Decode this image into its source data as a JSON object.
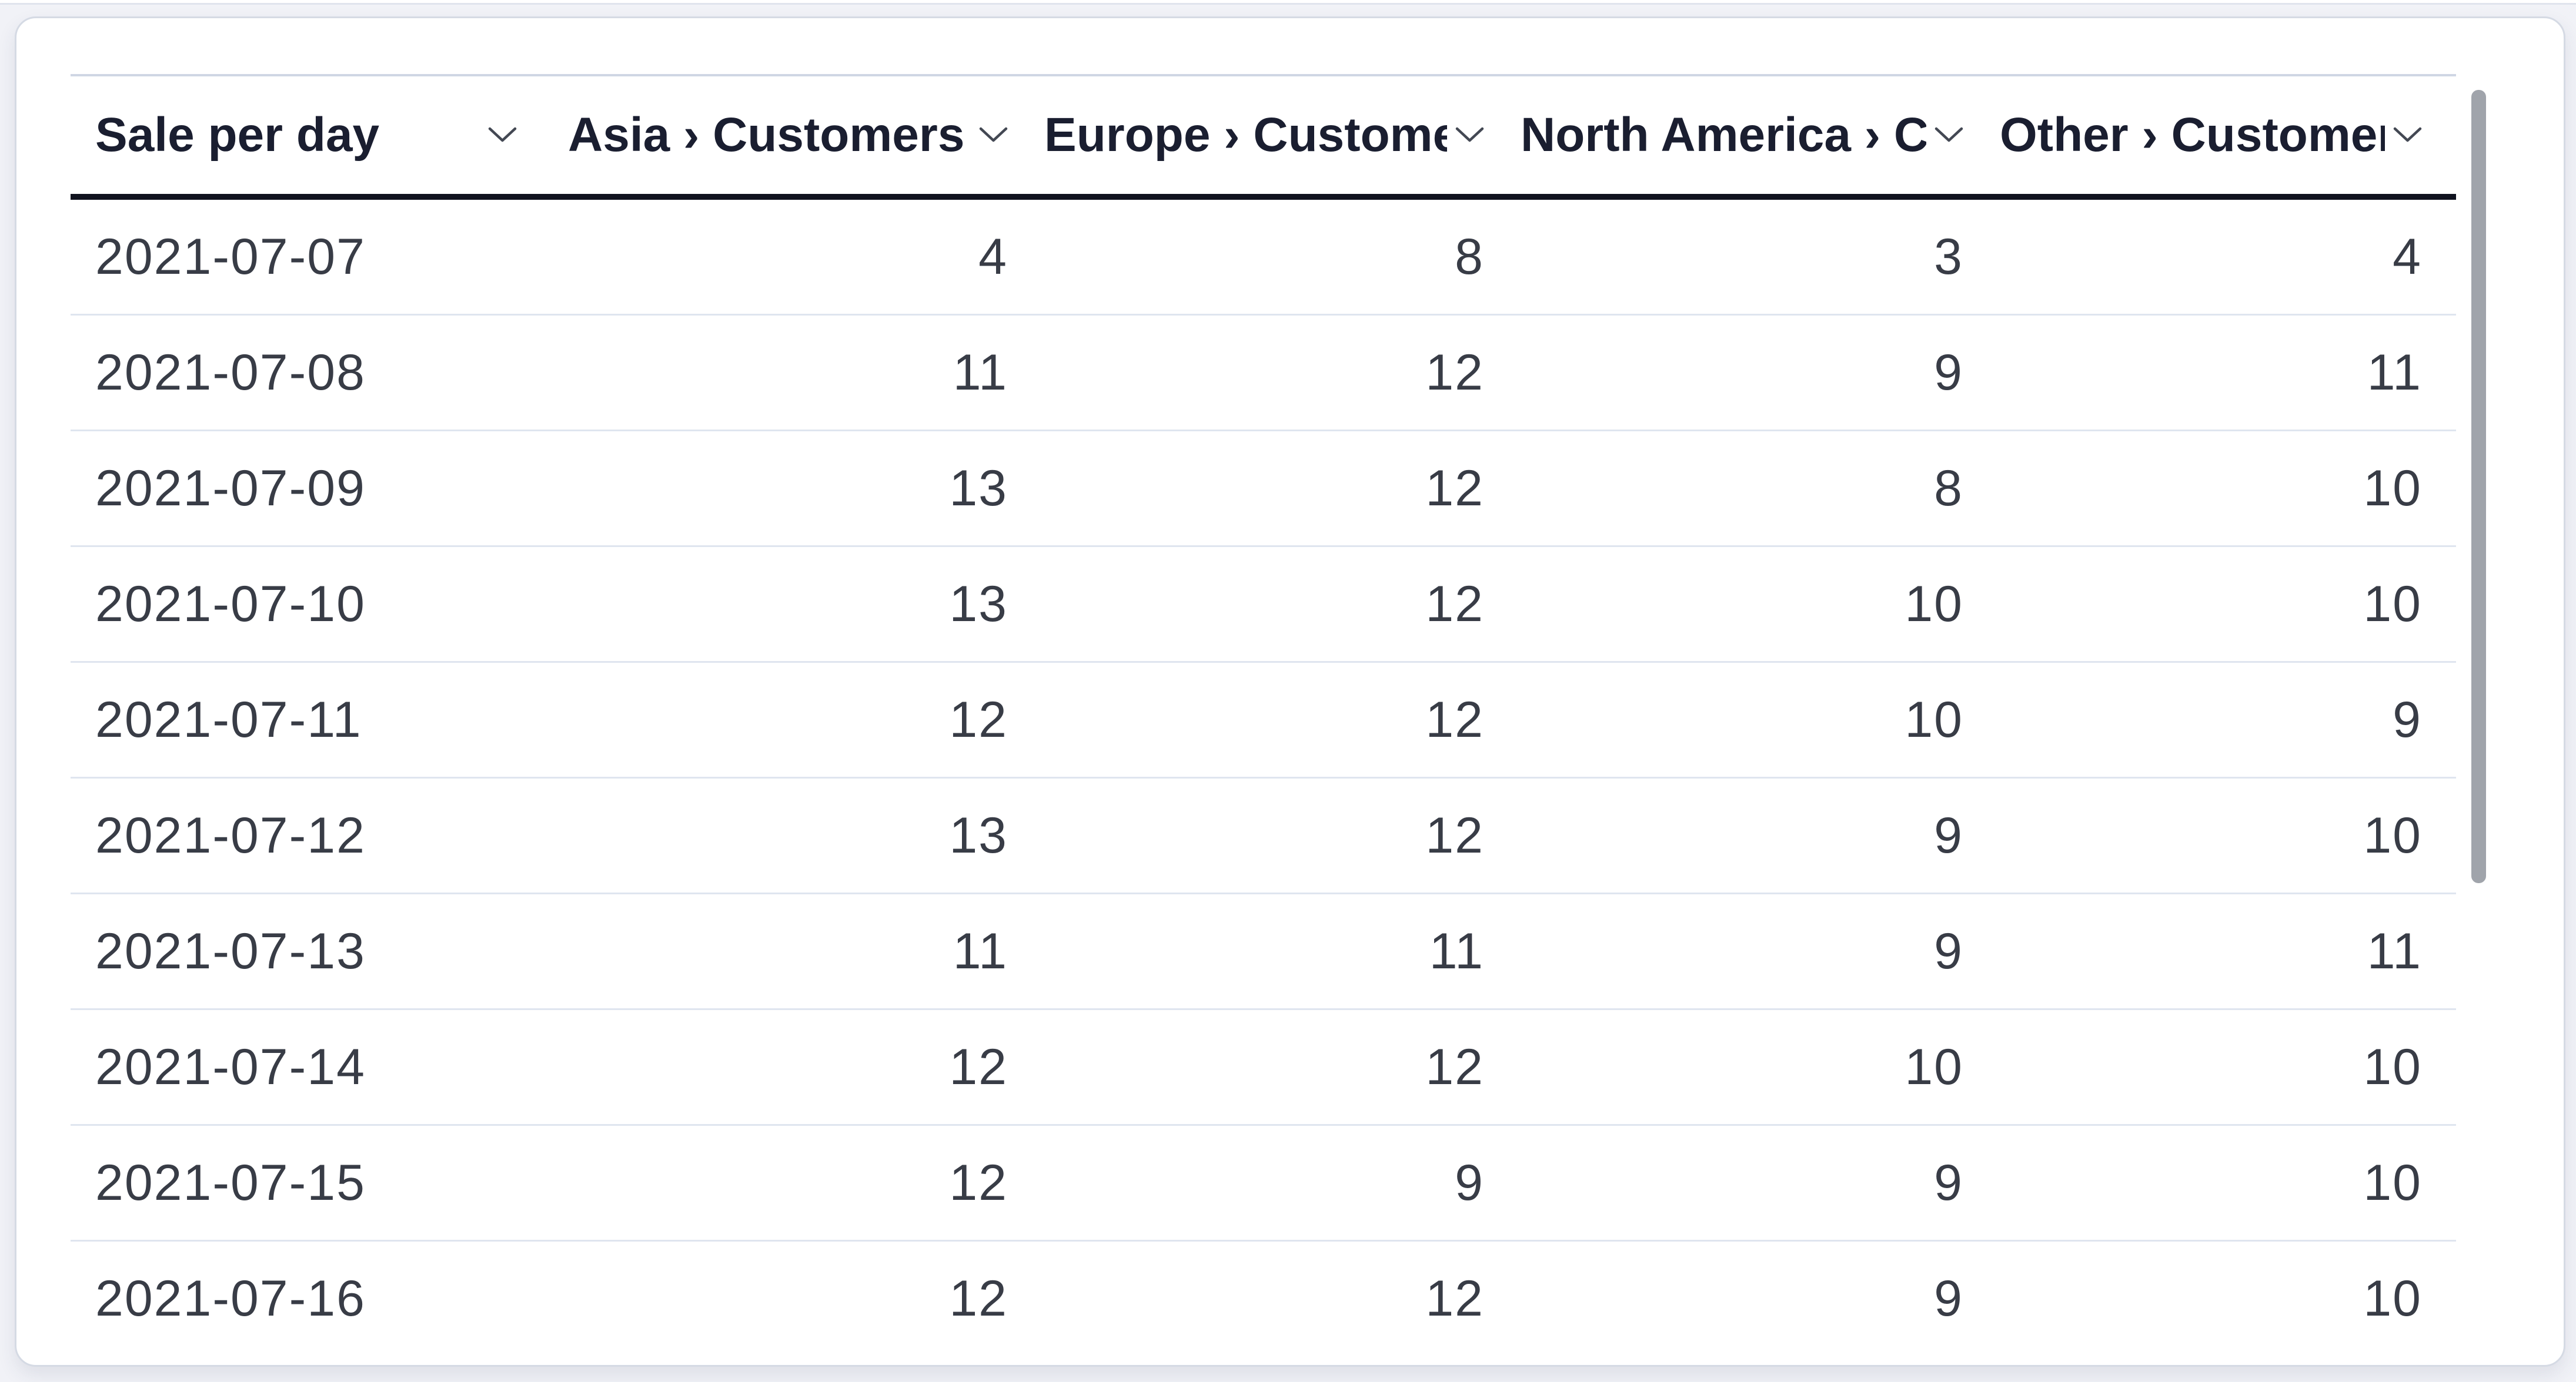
{
  "card": {
    "type": "table-card",
    "scrollbar": {
      "thumb_visible": true,
      "orientation": "vertical"
    }
  },
  "table": {
    "columns": [
      {
        "label": "Sale per day",
        "visible_label": "Sale per day",
        "align": "left",
        "sort_icon": "chevron-down"
      },
      {
        "label": "Asia › Customers",
        "visible_label": "Asia › Customer:",
        "align": "right",
        "sort_icon": "chevron-down"
      },
      {
        "label": "Europe › Customers",
        "visible_label": "Europe › Custom",
        "align": "right",
        "sort_icon": "chevron-down"
      },
      {
        "label": "North America › Customers",
        "visible_label": "North America › ",
        "align": "right",
        "sort_icon": "chevron-down"
      },
      {
        "label": "Other › Customers",
        "visible_label": "Other › Custome",
        "align": "right",
        "sort_icon": "chevron-down"
      }
    ],
    "rows": [
      [
        "2021-07-07",
        4,
        8,
        3,
        4
      ],
      [
        "2021-07-08",
        11,
        12,
        9,
        11
      ],
      [
        "2021-07-09",
        13,
        12,
        8,
        10
      ],
      [
        "2021-07-10",
        13,
        12,
        10,
        10
      ],
      [
        "2021-07-11",
        12,
        12,
        10,
        9
      ],
      [
        "2021-07-12",
        13,
        12,
        9,
        10
      ],
      [
        "2021-07-13",
        11,
        11,
        9,
        11
      ],
      [
        "2021-07-14",
        12,
        12,
        10,
        10
      ],
      [
        "2021-07-15",
        12,
        9,
        9,
        10
      ],
      [
        "2021-07-16",
        12,
        12,
        9,
        10
      ]
    ]
  },
  "chart_data": {
    "type": "table",
    "title": "Sale per day",
    "categories": [
      "2021-07-07",
      "2021-07-08",
      "2021-07-09",
      "2021-07-10",
      "2021-07-11",
      "2021-07-12",
      "2021-07-13",
      "2021-07-14",
      "2021-07-15",
      "2021-07-16"
    ],
    "series": [
      {
        "name": "Asia › Customers",
        "values": [
          4,
          11,
          13,
          13,
          12,
          13,
          11,
          12,
          12,
          12
        ]
      },
      {
        "name": "Europe › Customers",
        "values": [
          8,
          12,
          12,
          12,
          12,
          12,
          11,
          12,
          9,
          12
        ]
      },
      {
        "name": "North America › Customers",
        "values": [
          3,
          9,
          8,
          10,
          10,
          9,
          9,
          10,
          9,
          9
        ]
      },
      {
        "name": "Other › Customers",
        "values": [
          4,
          11,
          10,
          10,
          9,
          10,
          11,
          10,
          10,
          10
        ]
      }
    ]
  },
  "icons": {
    "sort": "chevron-down-icon"
  },
  "colors": {
    "page_background": "#f1f2f7",
    "card_background": "#ffffff",
    "card_border": "#d5dae4",
    "header_text": "#1a1e30",
    "header_underline": "#10131f",
    "body_text": "#383c46",
    "row_divider": "#dfe5ef",
    "table_top_border": "#cfd6e4",
    "chevron": "#434853",
    "scrollbar_thumb": "#a0a4ab"
  }
}
